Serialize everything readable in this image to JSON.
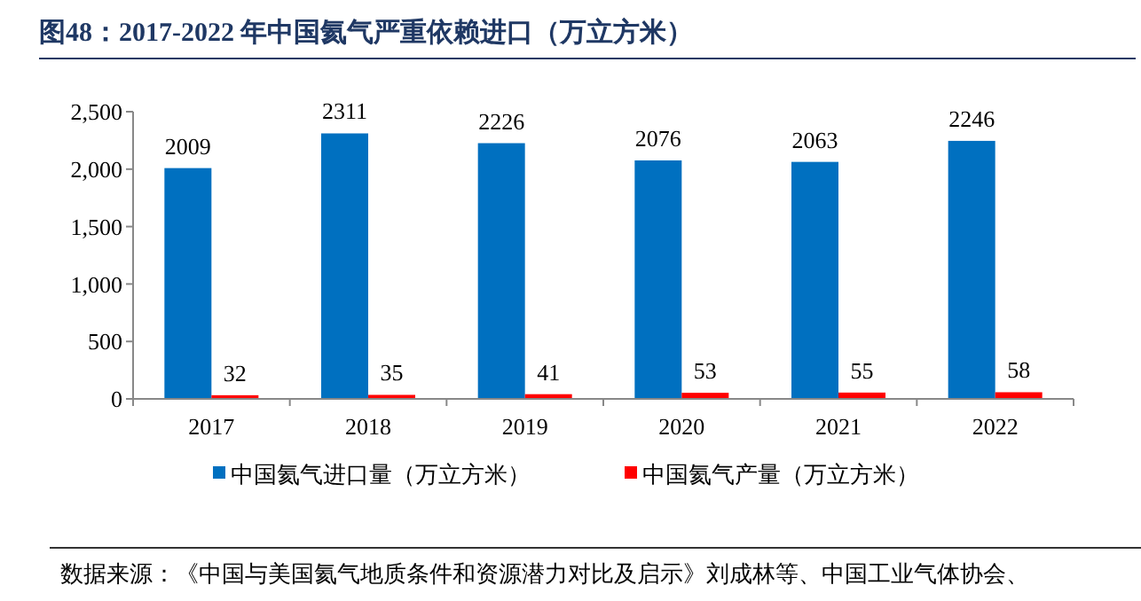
{
  "chart_data": {
    "type": "bar",
    "title": "图48：2017-2022 年中国氦气严重依赖进口（万立方米）",
    "categories": [
      "2017",
      "2018",
      "2019",
      "2020",
      "2021",
      "2022"
    ],
    "series": [
      {
        "name": "中国氦气进口量（万立方米）",
        "color": "#0070c0",
        "values": [
          2009,
          2311,
          2226,
          2076,
          2063,
          2246
        ]
      },
      {
        "name": "中国氦气产量（万立方米）",
        "color": "#ff0000",
        "values": [
          32,
          35,
          41,
          53,
          55,
          58
        ]
      }
    ],
    "ylim": [
      0,
      2500
    ],
    "yticks": [
      0,
      {
        "value": 500,
        "label": "500"
      },
      {
        "value": 1000,
        "label": "1,000"
      },
      {
        "value": 1500,
        "label": "1,500"
      },
      {
        "value": 2000,
        "label": "2,000"
      },
      {
        "value": 2500,
        "label": "2,500"
      }
    ],
    "data_labels": true,
    "grid": false,
    "legend": "bottom",
    "annotations": [
      "数据来源：《中国与美国氦气地质条件和资源潜力对比及启示》刘成林等、中国工业气体协会、"
    ]
  }
}
